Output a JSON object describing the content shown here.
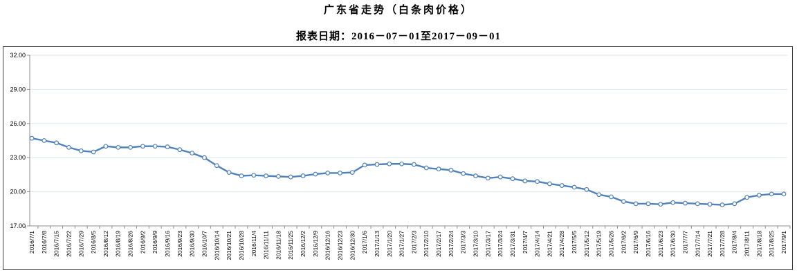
{
  "header": {
    "title": "广东省走势（白条肉价格）",
    "subtitle": "报表日期：2016－07－01至2017－09－01"
  },
  "chart_data": {
    "type": "line",
    "title": "广东省走势（白条肉价格）",
    "subtitle": "报表日期：2016－07－01至2017－09－01",
    "xlabel": "",
    "ylabel": "",
    "ylim": [
      17,
      32
    ],
    "y_ticks": [
      "17.00",
      "20.00",
      "23.00",
      "26.00",
      "29.00",
      "32.00"
    ],
    "grid": "horizontal",
    "legend_position": "none",
    "marker": "hollow-circle",
    "x": [
      "2016/7/1",
      "2016/7/8",
      "2016/7/15",
      "2016/7/22",
      "2016/7/29",
      "2016/8/5",
      "2016/8/12",
      "2016/8/19",
      "2016/8/26",
      "2016/9/2",
      "2016/9/9",
      "2016/9/16",
      "2016/9/23",
      "2016/9/30",
      "2016/10/7",
      "2016/10/14",
      "2016/10/21",
      "2016/10/28",
      "2016/11/4",
      "2016/11/11",
      "2016/11/18",
      "2016/11/25",
      "2016/12/2",
      "2016/12/9",
      "2016/12/16",
      "2016/12/23",
      "2016/12/30",
      "2017/1/6",
      "2017/1/13",
      "2017/1/20",
      "2017/1/27",
      "2017/2/3",
      "2017/2/10",
      "2017/2/17",
      "2017/2/24",
      "2017/3/3",
      "2017/3/10",
      "2017/3/17",
      "2017/3/24",
      "2017/3/31",
      "2017/4/7",
      "2017/4/14",
      "2017/4/21",
      "2017/4/28",
      "2017/5/5",
      "2017/5/12",
      "2017/5/19",
      "2017/5/26",
      "2017/6/2",
      "2017/6/9",
      "2017/6/16",
      "2017/6/23",
      "2017/6/30",
      "2017/7/7",
      "2017/7/14",
      "2017/7/21",
      "2017/7/28",
      "2017/8/4",
      "2017/8/11",
      "2017/8/18",
      "2017/8/25",
      "2017/9/1"
    ],
    "series": [
      {
        "name": "白条肉价格",
        "values": [
          24.7,
          24.5,
          24.3,
          23.9,
          23.6,
          23.5,
          24.0,
          23.9,
          23.9,
          24.0,
          24.0,
          23.95,
          23.7,
          23.4,
          23.0,
          22.3,
          21.7,
          21.4,
          21.45,
          21.4,
          21.35,
          21.3,
          21.4,
          21.55,
          21.65,
          21.65,
          21.7,
          22.35,
          22.4,
          22.45,
          22.45,
          22.4,
          22.1,
          22.0,
          21.9,
          21.6,
          21.4,
          21.2,
          21.3,
          21.15,
          20.95,
          20.9,
          20.7,
          20.55,
          20.4,
          20.2,
          19.75,
          19.55,
          19.15,
          18.95,
          18.95,
          18.9,
          19.05,
          19.0,
          18.95,
          18.9,
          18.85,
          18.95,
          19.5,
          19.7,
          19.8,
          19.8
        ]
      }
    ],
    "colors": {
      "line": "#4F81BD",
      "marker_fill": "#FFFFFF",
      "gridline": "#DCE6F1",
      "axis": "#8E8E8E",
      "frame": "#3B3B3B",
      "text": "#000000"
    }
  }
}
